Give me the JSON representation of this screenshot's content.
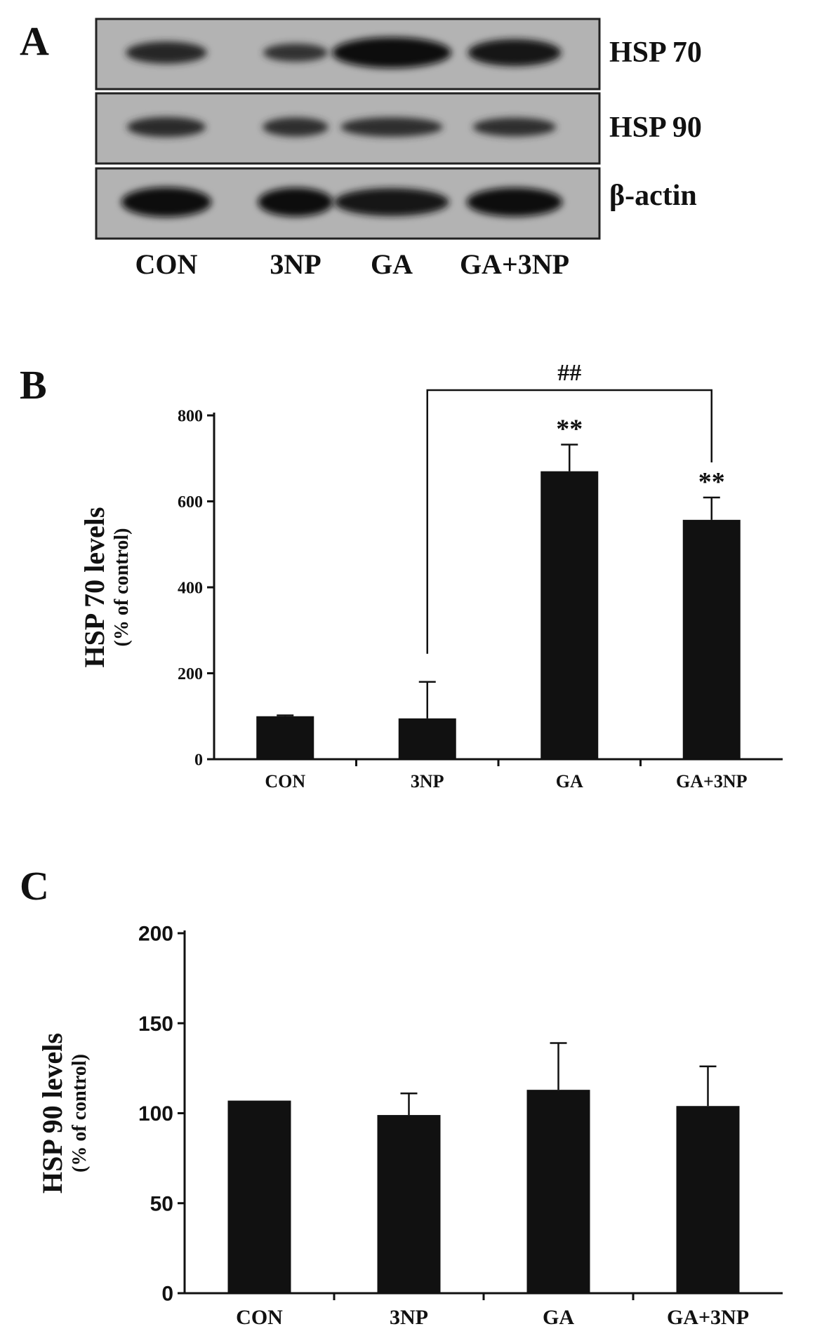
{
  "panels": {
    "a_label": "A",
    "b_label": "B",
    "c_label": "C"
  },
  "blot": {
    "lanes": [
      "CON",
      "3NP",
      "GA",
      "GA+3NP"
    ],
    "strips": [
      {
        "label": "HSP 70",
        "intensity": [
          0.55,
          0.35,
          1.0,
          0.8
        ]
      },
      {
        "label": "HSP 90",
        "intensity": [
          0.45,
          0.4,
          0.42,
          0.38
        ]
      },
      {
        "label": "β-actin",
        "intensity": [
          0.95,
          0.9,
          0.85,
          0.9
        ]
      }
    ]
  },
  "chart_data": [
    {
      "type": "bar",
      "panel": "B",
      "categories": [
        "CON",
        "3NP",
        "GA",
        "GA+3NP"
      ],
      "values": [
        100,
        95,
        670,
        557
      ],
      "errors": [
        2,
        85,
        62,
        52
      ],
      "ylabel": "HSP 70 levels",
      "ylabel_sub": "(% of control)",
      "ylim": [
        0,
        800
      ],
      "yticks": [
        0,
        200,
        400,
        600,
        800
      ],
      "annotations": [
        {
          "category": "GA",
          "text": "**"
        },
        {
          "category": "GA+3NP",
          "text": "**"
        }
      ],
      "bracket": {
        "from": "3NP",
        "to": "GA+3NP",
        "text": "##"
      },
      "bar_color": "#111111"
    },
    {
      "type": "bar",
      "panel": "C",
      "categories": [
        "CON",
        "3NP",
        "GA",
        "GA+3NP"
      ],
      "values": [
        107,
        99,
        113,
        104
      ],
      "errors": [
        0,
        12,
        26,
        22
      ],
      "ylabel": "HSP 90 levels",
      "ylabel_sub": "(% of control)",
      "ylim": [
        0,
        200
      ],
      "yticks": [
        0,
        50,
        100,
        150,
        200
      ],
      "bar_color": "#111111"
    }
  ]
}
